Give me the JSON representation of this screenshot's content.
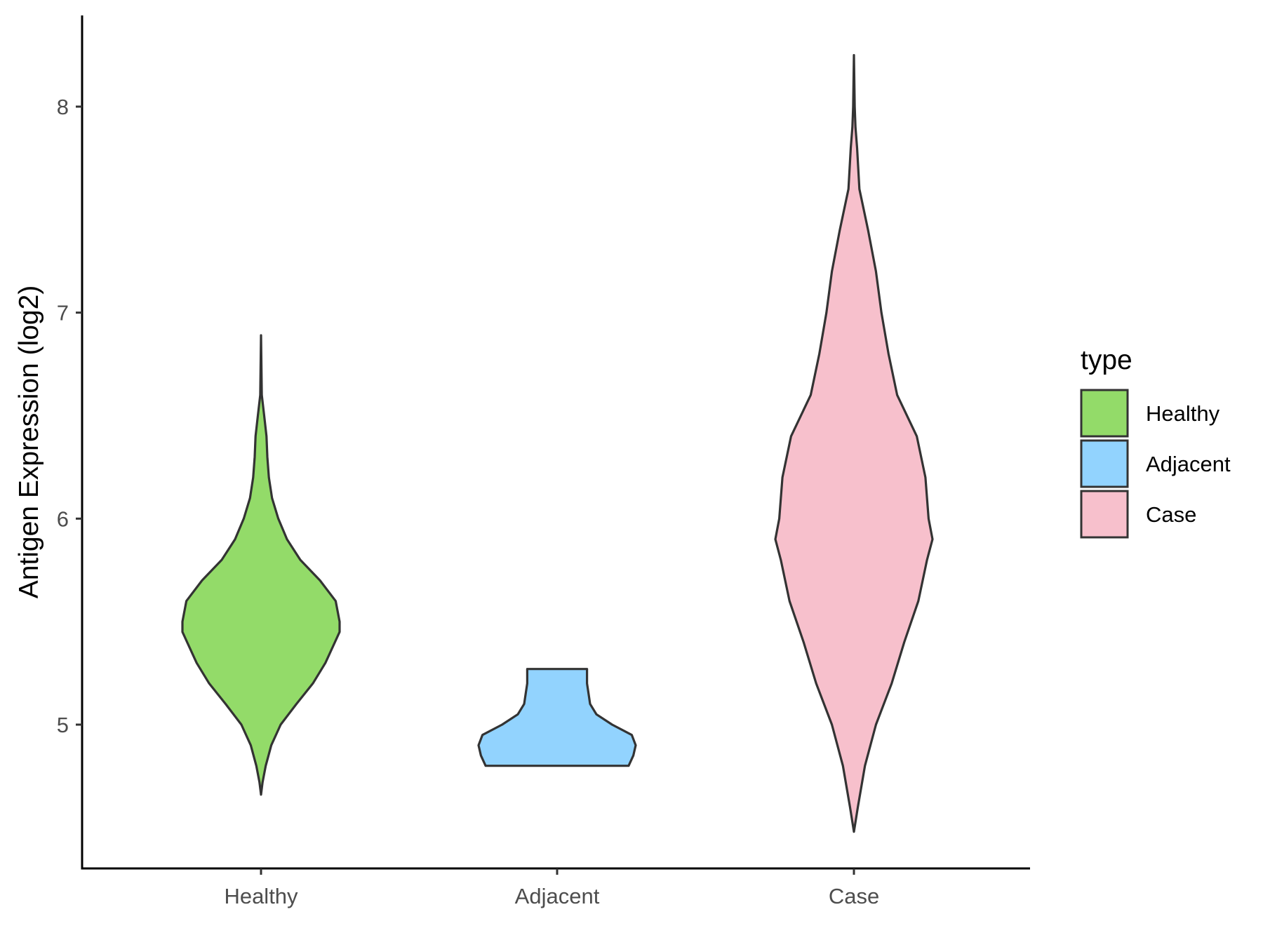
{
  "chart_data": {
    "type": "violin",
    "title": "",
    "xlabel": "",
    "ylabel": "Antigen Expression (log2)",
    "ylim": [
      4.3,
      8.45
    ],
    "yticks": [
      5,
      6,
      7,
      8
    ],
    "categories": [
      "Healthy",
      "Adjacent",
      "Case"
    ],
    "legend": {
      "title": "type",
      "position": "right",
      "items": [
        "Healthy",
        "Adjacent",
        "Case"
      ]
    },
    "grid": false,
    "series": [
      {
        "name": "Healthy",
        "color": "#93db69",
        "min": 4.66,
        "max": 6.89,
        "profile": [
          [
            4.66,
            0.0
          ],
          [
            4.72,
            0.02
          ],
          [
            4.8,
            0.06
          ],
          [
            4.9,
            0.13
          ],
          [
            5.0,
            0.25
          ],
          [
            5.1,
            0.45
          ],
          [
            5.2,
            0.66
          ],
          [
            5.3,
            0.82
          ],
          [
            5.4,
            0.94
          ],
          [
            5.45,
            1.0
          ],
          [
            5.5,
            1.0
          ],
          [
            5.6,
            0.95
          ],
          [
            5.7,
            0.75
          ],
          [
            5.8,
            0.5
          ],
          [
            5.9,
            0.33
          ],
          [
            6.0,
            0.22
          ],
          [
            6.1,
            0.14
          ],
          [
            6.2,
            0.1
          ],
          [
            6.3,
            0.08
          ],
          [
            6.4,
            0.07
          ],
          [
            6.5,
            0.04
          ],
          [
            6.6,
            0.01
          ],
          [
            6.89,
            0.0
          ]
        ]
      },
      {
        "name": "Adjacent",
        "color": "#92d3fe",
        "min": 4.8,
        "max": 5.27,
        "profile": [
          [
            4.8,
            0.91
          ],
          [
            4.85,
            0.97
          ],
          [
            4.9,
            1.0
          ],
          [
            4.95,
            0.95
          ],
          [
            5.0,
            0.7
          ],
          [
            5.05,
            0.5
          ],
          [
            5.1,
            0.42
          ],
          [
            5.15,
            0.4
          ],
          [
            5.2,
            0.38
          ],
          [
            5.27,
            0.38
          ]
        ]
      },
      {
        "name": "Case",
        "color": "#f7c0cc",
        "min": 4.48,
        "max": 8.25,
        "profile": [
          [
            4.48,
            0.0
          ],
          [
            4.6,
            0.05
          ],
          [
            4.8,
            0.14
          ],
          [
            5.0,
            0.28
          ],
          [
            5.2,
            0.48
          ],
          [
            5.4,
            0.64
          ],
          [
            5.6,
            0.82
          ],
          [
            5.8,
            0.93
          ],
          [
            5.9,
            1.0
          ],
          [
            6.0,
            0.95
          ],
          [
            6.2,
            0.91
          ],
          [
            6.4,
            0.8
          ],
          [
            6.6,
            0.55
          ],
          [
            6.8,
            0.44
          ],
          [
            7.0,
            0.35
          ],
          [
            7.2,
            0.28
          ],
          [
            7.4,
            0.18
          ],
          [
            7.6,
            0.07
          ],
          [
            7.8,
            0.04
          ],
          [
            7.9,
            0.02
          ],
          [
            8.0,
            0.01
          ],
          [
            8.25,
            0.0
          ]
        ]
      }
    ]
  }
}
